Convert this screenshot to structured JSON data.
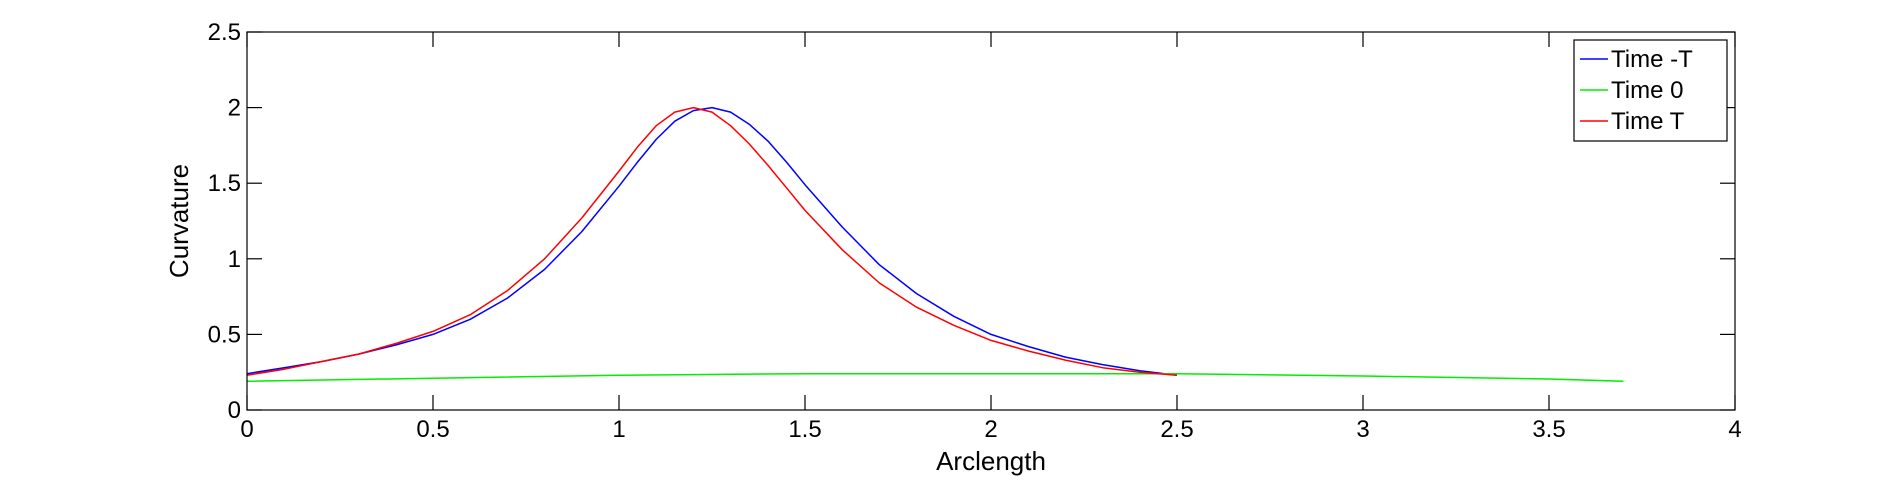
{
  "chart_data": {
    "type": "line",
    "title": "",
    "xlabel": "Arclength",
    "ylabel": "Curvature",
    "xlim": [
      0,
      4
    ],
    "ylim": [
      0,
      2.5
    ],
    "xticks": [
      "0",
      "0.5",
      "1",
      "1.5",
      "2",
      "2.5",
      "3",
      "3.5",
      "4"
    ],
    "yticks": [
      "0",
      "0.5",
      "1",
      "1.5",
      "2",
      "2.5"
    ],
    "grid": false,
    "legend_position": "top-right",
    "series": [
      {
        "name": "Time -T",
        "color": "#0000ff",
        "x": [
          0,
          0.1,
          0.2,
          0.3,
          0.4,
          0.5,
          0.6,
          0.7,
          0.8,
          0.9,
          1.0,
          1.05,
          1.1,
          1.15,
          1.2,
          1.25,
          1.3,
          1.35,
          1.4,
          1.45,
          1.5,
          1.6,
          1.7,
          1.8,
          1.9,
          2.0,
          2.1,
          2.2,
          2.3,
          2.4,
          2.5
        ],
        "y": [
          0.24,
          0.28,
          0.32,
          0.37,
          0.43,
          0.5,
          0.6,
          0.74,
          0.93,
          1.18,
          1.48,
          1.64,
          1.79,
          1.91,
          1.98,
          2.0,
          1.97,
          1.89,
          1.78,
          1.64,
          1.49,
          1.21,
          0.96,
          0.77,
          0.62,
          0.5,
          0.42,
          0.35,
          0.3,
          0.26,
          0.23
        ]
      },
      {
        "name": "Time 0",
        "color": "#00ee00",
        "x": [
          0,
          0.5,
          1.0,
          1.5,
          2.0,
          2.5,
          3.0,
          3.5,
          3.7
        ],
        "y": [
          0.19,
          0.21,
          0.23,
          0.24,
          0.24,
          0.24,
          0.225,
          0.205,
          0.19
        ]
      },
      {
        "name": "Time T",
        "color": "#ff0000",
        "x": [
          0,
          0.1,
          0.2,
          0.3,
          0.4,
          0.5,
          0.6,
          0.7,
          0.8,
          0.9,
          1.0,
          1.05,
          1.1,
          1.15,
          1.2,
          1.25,
          1.3,
          1.35,
          1.4,
          1.45,
          1.5,
          1.6,
          1.7,
          1.8,
          1.9,
          2.0,
          2.1,
          2.2,
          2.3,
          2.4,
          2.5
        ],
        "y": [
          0.23,
          0.27,
          0.32,
          0.37,
          0.44,
          0.52,
          0.63,
          0.79,
          1.0,
          1.27,
          1.58,
          1.74,
          1.88,
          1.97,
          2.0,
          1.97,
          1.88,
          1.76,
          1.62,
          1.47,
          1.32,
          1.06,
          0.84,
          0.68,
          0.56,
          0.46,
          0.39,
          0.33,
          0.28,
          0.25,
          0.23
        ]
      }
    ]
  }
}
